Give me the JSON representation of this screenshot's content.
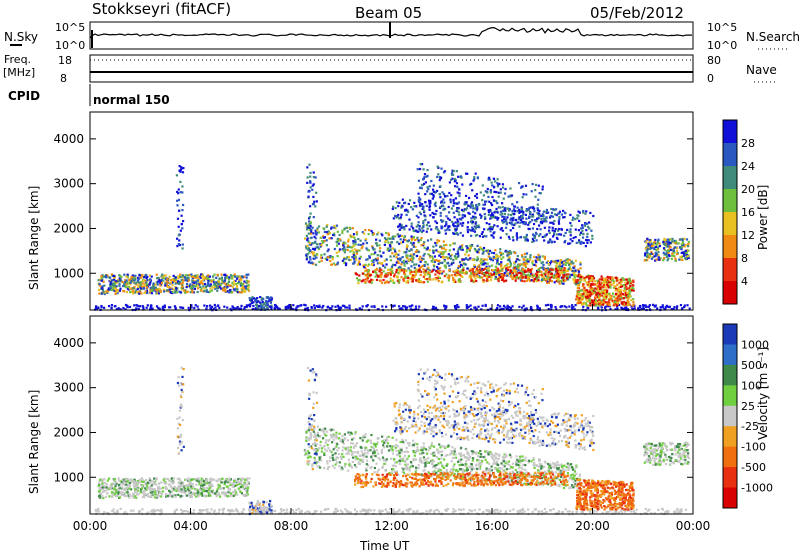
{
  "header": {
    "station": "Stokkseyri (fitACF)",
    "beam": "Beam 05",
    "date": "05/Feb/2012"
  },
  "top_panels": {
    "nsky_label": "N.Sky",
    "nsky_scale_high": "10^5",
    "nsky_scale_low": "10^0",
    "nsearch_label": "N.Search",
    "nsearch_scale_high": "10^5",
    "nsearch_scale_low": "10^0",
    "freq_label": "Freq.",
    "freq_unit": "[MHz]",
    "freq_high": "18",
    "freq_low": "8",
    "nave_label": "Nave",
    "nave_high": "80",
    "nave_low": "0",
    "cpid_label": "CPID",
    "cpid_value": "normal 150"
  },
  "chart_data": [
    {
      "type": "heatmap",
      "panel": "power",
      "x_range_hours": [
        0,
        24
      ],
      "xtick_labels": [
        "00:00",
        "04:00",
        "08:00",
        "12:00",
        "16:00",
        "20:00",
        "00:00"
      ],
      "ylabel": "Slant Range [km]",
      "ylim": [
        180,
        4600
      ],
      "ytick_labels": [
        "1000",
        "2000",
        "3000",
        "4000"
      ],
      "colorbar_label": "Power [dB]",
      "colorbar_ticks": [
        "4",
        "8",
        "12",
        "16",
        "20",
        "24",
        "28"
      ],
      "colorbar_colors": [
        "#1010d8",
        "#2a58c0",
        "#3f8a7a",
        "#6fbf3f",
        "#e8c020",
        "#f08a10",
        "#e83010",
        "#d80000"
      ]
    },
    {
      "type": "heatmap",
      "panel": "velocity",
      "x_range_hours": [
        0,
        24
      ],
      "xtick_labels": [
        "00:00",
        "04:00",
        "08:00",
        "12:00",
        "16:00",
        "20:00",
        "00:00"
      ],
      "xlabel": "Time UT",
      "ylabel": "Slant Range [km]",
      "ylim": [
        180,
        4600
      ],
      "ytick_labels": [
        "1000",
        "2000",
        "3000",
        "4000"
      ],
      "colorbar_label": "Velocity [m s⁻¹]",
      "colorbar_ticks": [
        "1000",
        "500",
        "100",
        "25",
        "-25",
        "-100",
        "-500",
        "-1000"
      ],
      "colorbar_colors": [
        "#1a3ab8",
        "#2f6ec8",
        "#3f8a4a",
        "#6fcf3f",
        "#c8c8c8",
        "#f0a020",
        "#f07010",
        "#e83010",
        "#d80000"
      ]
    }
  ]
}
